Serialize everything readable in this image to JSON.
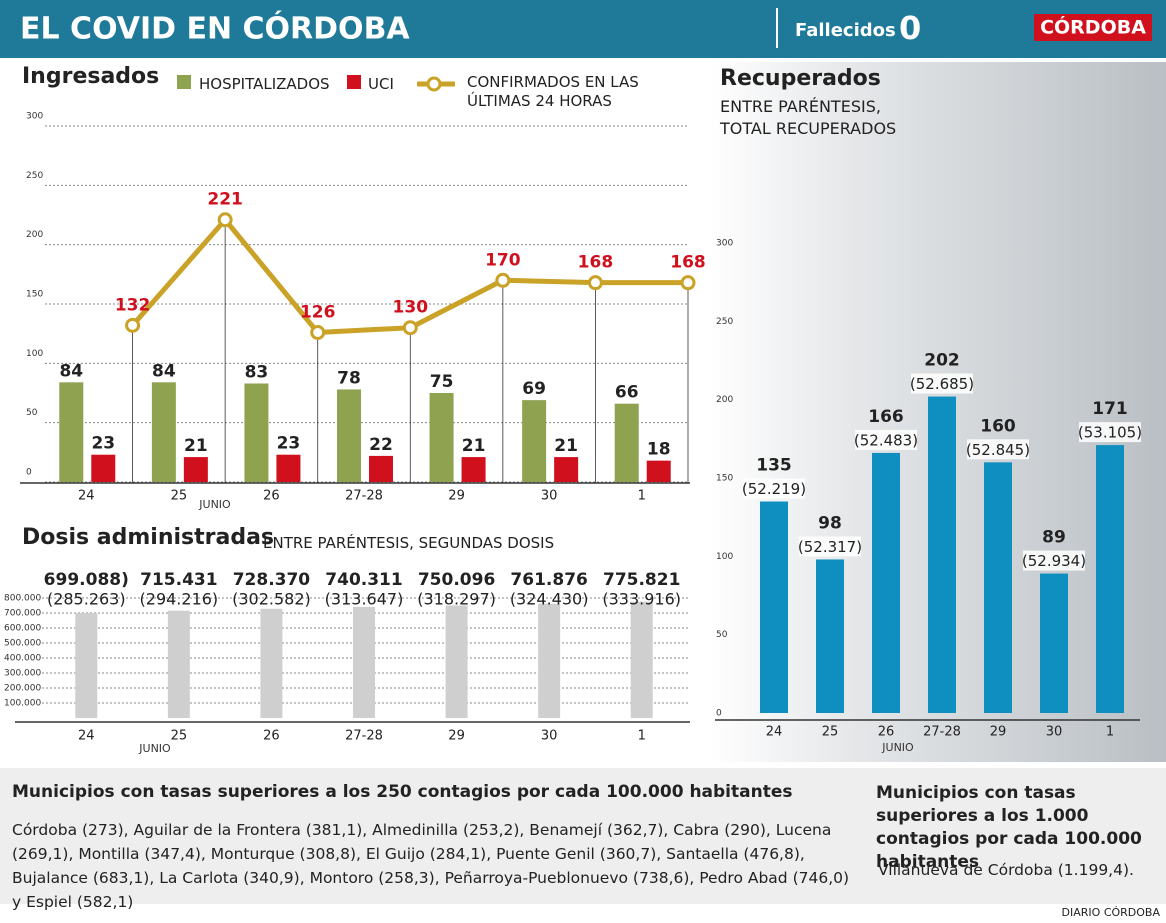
{
  "header": {
    "title": "EL COVID EN CÓRDOBA",
    "fallecidos_label": "Fallecidos",
    "fallecidos": 0,
    "logo": "CÓRDOBA"
  },
  "chart_data": [
    {
      "type": "bar_line",
      "title": "Ingresados",
      "categories": [
        "24",
        "25",
        "26",
        "27-28",
        "29",
        "30",
        "1"
      ],
      "x_label": "JUNIO",
      "series": [
        {
          "name": "HOSPITALIZADOS",
          "type": "bar",
          "color": "#8ea24f",
          "values": [
            84,
            84,
            83,
            78,
            75,
            69,
            66
          ]
        },
        {
          "name": "UCI",
          "type": "bar",
          "color": "#d0101d",
          "values": [
            23,
            21,
            23,
            22,
            21,
            21,
            18
          ]
        },
        {
          "name": "CONFIRMADOS EN LAS ÚLTIMAS 24 HORAS",
          "type": "line",
          "color": "#c9a227",
          "label_color": "#d0101d",
          "values": [
            132,
            221,
            126,
            130,
            170,
            168,
            168
          ]
        }
      ],
      "ylim": [
        0,
        300
      ],
      "yticks": [
        0,
        50,
        100,
        150,
        200,
        250,
        300
      ],
      "grid": true
    },
    {
      "type": "bar",
      "title": "Recuperados",
      "subtitle": "ENTRE PARÉNTESIS, TOTAL RECUPERADOS",
      "categories": [
        "24",
        "25",
        "26",
        "27-28",
        "29",
        "30",
        "1"
      ],
      "x_label": "JUNIO",
      "values": [
        135,
        98,
        166,
        202,
        160,
        89,
        171
      ],
      "color": "#0e8fc0",
      "total_labels": [
        "(52.219)",
        "(52.317)",
        "(52.483)",
        "(52.685)",
        "(52.845)",
        "(52.934)",
        "(53.105)"
      ],
      "ylim": [
        0,
        300
      ],
      "yticks": [
        0,
        50,
        100,
        150,
        200,
        250,
        300
      ],
      "grid": false
    },
    {
      "type": "bar",
      "title": "Dosis administradas",
      "subtitle": "ENTRE PARÉNTESIS, SEGUNDAS DOSIS",
      "categories": [
        "24",
        "25",
        "26",
        "27-28",
        "29",
        "30",
        "1"
      ],
      "x_label": "JUNIO",
      "values": [
        699088,
        715431,
        728370,
        740311,
        750096,
        761876,
        775821
      ],
      "value_labels": [
        "699.088)",
        "715.431",
        "728.370",
        "740.311",
        "750.096",
        "761.876",
        "775.821"
      ],
      "second_dose_labels": [
        "(285.263)",
        "(294.216)",
        "(302.582)",
        "(313.647)",
        "(318.297)",
        "(324.430)",
        "(333.916)"
      ],
      "color": "#cfcfcf",
      "ylim": [
        0,
        800000
      ],
      "yticks": [
        {
          "value": 100000,
          "label": "100.000"
        },
        {
          "value": 200000,
          "label": "200.000"
        },
        {
          "value": 300000,
          "label": "300.000"
        },
        {
          "value": 400000,
          "label": "400.000"
        },
        {
          "value": 500000,
          "label": "500.000"
        },
        {
          "value": 600000,
          "label": "600.000"
        },
        {
          "value": 700000,
          "label": "700.000"
        },
        {
          "value": 800000,
          "label": "800.000"
        }
      ],
      "grid": true
    }
  ],
  "municipios_250": {
    "title": "Municipios con tasas superiores a los 250 contagios por cada 100.000 habitantes",
    "text": "Córdoba (273), Aguilar de la Frontera (381,1), Almedinilla (253,2), Benamejí (362,7), Cabra (290), Lucena (269,1), Montilla (347,4), Monturque (308,8), El Guijo (284,1), Puente Genil (360,7), Santaella (476,8), Bujalance (683,1), La Carlota (340,9), Montoro (258,3), Peñarroya-Pueblonuevo (738,6), Pedro Abad (746,0) y Espiel (582,1)"
  },
  "municipios_1000": {
    "title": "Municipios con tasas superiores a los 1.000 contagios por cada 100.000 habitantes",
    "text": "Villanueva de Córdoba (1.199,4)."
  },
  "footer": "DIARIO CÓRDOBA"
}
